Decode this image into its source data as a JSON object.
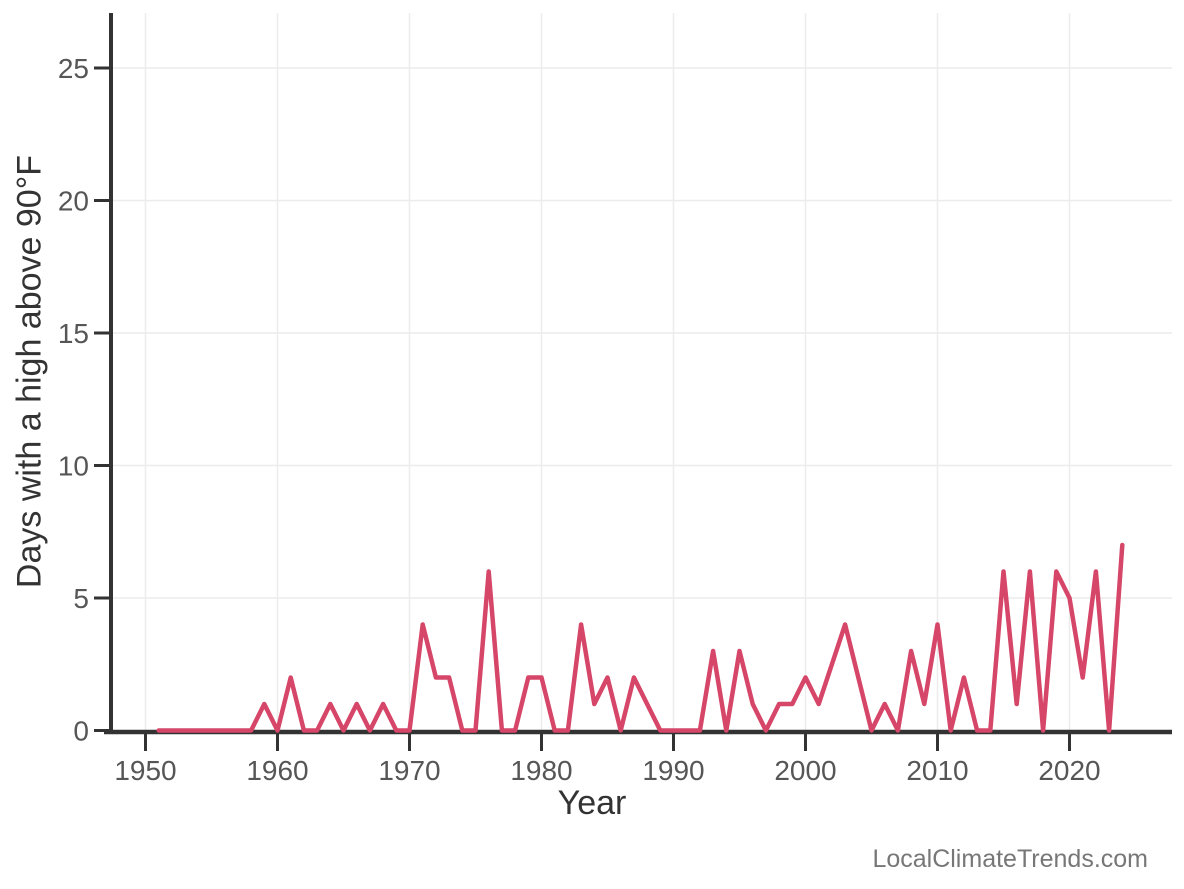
{
  "watermark": "LocalClimateTrends.com",
  "colors": {
    "background": "#ffffff",
    "line": "#d64669",
    "axis": "#333333",
    "tick_label": "#565656",
    "axis_title": "#333333",
    "gridline": "#ececec",
    "watermark": "#777777"
  },
  "chart_data": {
    "type": "line",
    "title": "",
    "xlabel": "Year",
    "ylabel": "Days with a high above 90°F",
    "legend": "none",
    "grid": true,
    "xlim": [
      1947.4,
      2027.5
    ],
    "ylim": [
      0,
      27
    ],
    "x_ticks": [
      1950,
      1960,
      1970,
      1980,
      1990,
      2000,
      2010,
      2020
    ],
    "y_ticks": [
      0,
      5,
      10,
      15,
      20,
      25
    ],
    "series": [
      {
        "name": "days_with_high_above_90F",
        "x": [
          1951,
          1952,
          1953,
          1954,
          1955,
          1956,
          1957,
          1958,
          1959,
          1960,
          1961,
          1962,
          1963,
          1964,
          1965,
          1966,
          1967,
          1968,
          1969,
          1970,
          1971,
          1972,
          1973,
          1974,
          1975,
          1976,
          1977,
          1978,
          1979,
          1980,
          1981,
          1982,
          1983,
          1984,
          1985,
          1986,
          1987,
          1988,
          1989,
          1990,
          1991,
          1992,
          1993,
          1994,
          1995,
          1996,
          1997,
          1998,
          1999,
          2000,
          2001,
          2002,
          2003,
          2004,
          2005,
          2006,
          2007,
          2008,
          2009,
          2010,
          2011,
          2012,
          2013,
          2014,
          2015,
          2016,
          2017,
          2018,
          2019,
          2020,
          2021,
          2022,
          2023,
          2024
        ],
        "values": [
          0,
          0,
          0,
          0,
          0,
          0,
          0,
          0,
          1,
          0,
          2,
          0,
          0,
          1,
          0,
          1,
          0,
          1,
          0,
          0,
          4,
          2,
          2,
          0,
          0,
          6,
          0,
          0,
          2,
          2,
          0,
          0,
          4,
          1,
          2,
          0,
          2,
          1,
          0,
          0,
          0,
          0,
          3,
          0,
          3,
          1,
          0,
          1,
          1,
          2,
          1,
          2.5,
          4,
          2,
          0,
          1,
          0,
          3,
          1,
          4,
          0,
          2,
          0,
          0,
          6,
          1,
          6,
          0,
          6,
          5,
          2,
          6,
          0,
          7
        ]
      }
    ]
  }
}
